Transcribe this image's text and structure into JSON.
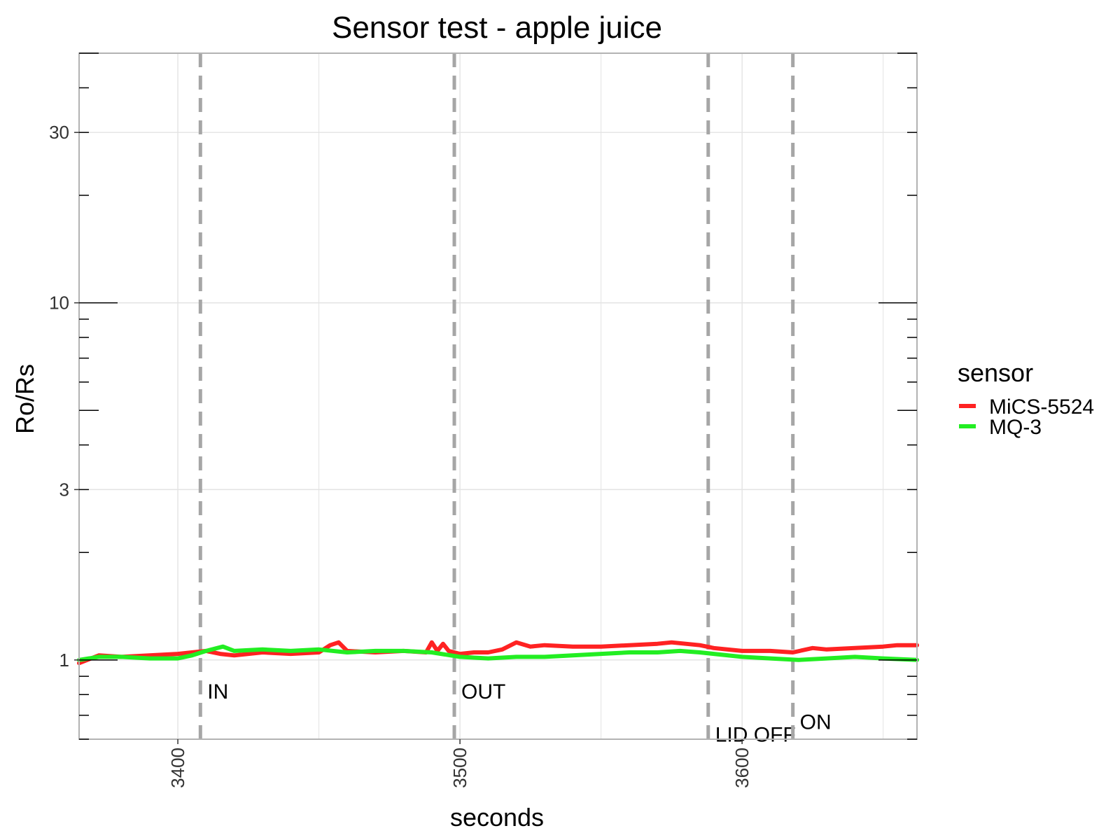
{
  "chart_data": {
    "type": "line",
    "title": "Sensor test - apple juice",
    "xlabel": "seconds",
    "ylabel": "Ro/Rs",
    "y_scale": "log",
    "xlim": [
      3365,
      3662
    ],
    "ylim": [
      0.6,
      50
    ],
    "grid": true,
    "legend": {
      "title": "sensor",
      "position": "right"
    },
    "x_ticks": [
      {
        "value": 3400,
        "label": "3400"
      },
      {
        "value": 3500,
        "label": "3500"
      },
      {
        "value": 3600,
        "label": "3600"
      }
    ],
    "y_ticks": [
      {
        "value": 1,
        "label": "1"
      },
      {
        "value": 3,
        "label": "3"
      },
      {
        "value": 10,
        "label": "10"
      },
      {
        "value": 30,
        "label": "30"
      }
    ],
    "events": [
      {
        "x": 3408,
        "label": "IN",
        "label_y": 0.78
      },
      {
        "x": 3498,
        "label": "OUT",
        "label_y": 0.78
      },
      {
        "x": 3588,
        "label": "LID OFF",
        "label_y": 0.59
      },
      {
        "x": 3618,
        "label": "ON",
        "label_y": 0.64
      }
    ],
    "series": [
      {
        "name": "MiCS-5524",
        "color": "#ff2222",
        "x": [
          3365,
          3372,
          3380,
          3390,
          3400,
          3405,
          3410,
          3415,
          3420,
          3430,
          3440,
          3450,
          3454,
          3457,
          3460,
          3470,
          3480,
          3488,
          3490,
          3492,
          3494,
          3496,
          3500,
          3505,
          3510,
          3515,
          3520,
          3525,
          3530,
          3540,
          3550,
          3560,
          3570,
          3575,
          3580,
          3585,
          3590,
          3600,
          3610,
          3618,
          3625,
          3630,
          3640,
          3650,
          3655,
          3662
        ],
        "y": [
          0.98,
          1.03,
          1.02,
          1.03,
          1.04,
          1.05,
          1.06,
          1.04,
          1.03,
          1.05,
          1.04,
          1.05,
          1.1,
          1.12,
          1.06,
          1.05,
          1.06,
          1.05,
          1.12,
          1.06,
          1.11,
          1.06,
          1.04,
          1.05,
          1.05,
          1.07,
          1.12,
          1.09,
          1.1,
          1.09,
          1.09,
          1.1,
          1.11,
          1.12,
          1.11,
          1.1,
          1.08,
          1.06,
          1.06,
          1.05,
          1.08,
          1.07,
          1.08,
          1.09,
          1.1,
          1.1
        ]
      },
      {
        "name": "MQ-3",
        "color": "#22ee22",
        "x": [
          3365,
          3372,
          3380,
          3390,
          3400,
          3405,
          3410,
          3416,
          3420,
          3430,
          3440,
          3450,
          3460,
          3470,
          3480,
          3490,
          3500,
          3510,
          3520,
          3530,
          3540,
          3550,
          3560,
          3570,
          3578,
          3585,
          3590,
          3600,
          3610,
          3620,
          3630,
          3640,
          3650,
          3662
        ],
        "y": [
          1.0,
          1.02,
          1.02,
          1.01,
          1.01,
          1.03,
          1.06,
          1.09,
          1.06,
          1.07,
          1.06,
          1.07,
          1.05,
          1.06,
          1.06,
          1.05,
          1.02,
          1.01,
          1.02,
          1.02,
          1.03,
          1.04,
          1.05,
          1.05,
          1.06,
          1.05,
          1.04,
          1.02,
          1.01,
          1.0,
          1.01,
          1.02,
          1.01,
          1.0
        ]
      }
    ]
  }
}
